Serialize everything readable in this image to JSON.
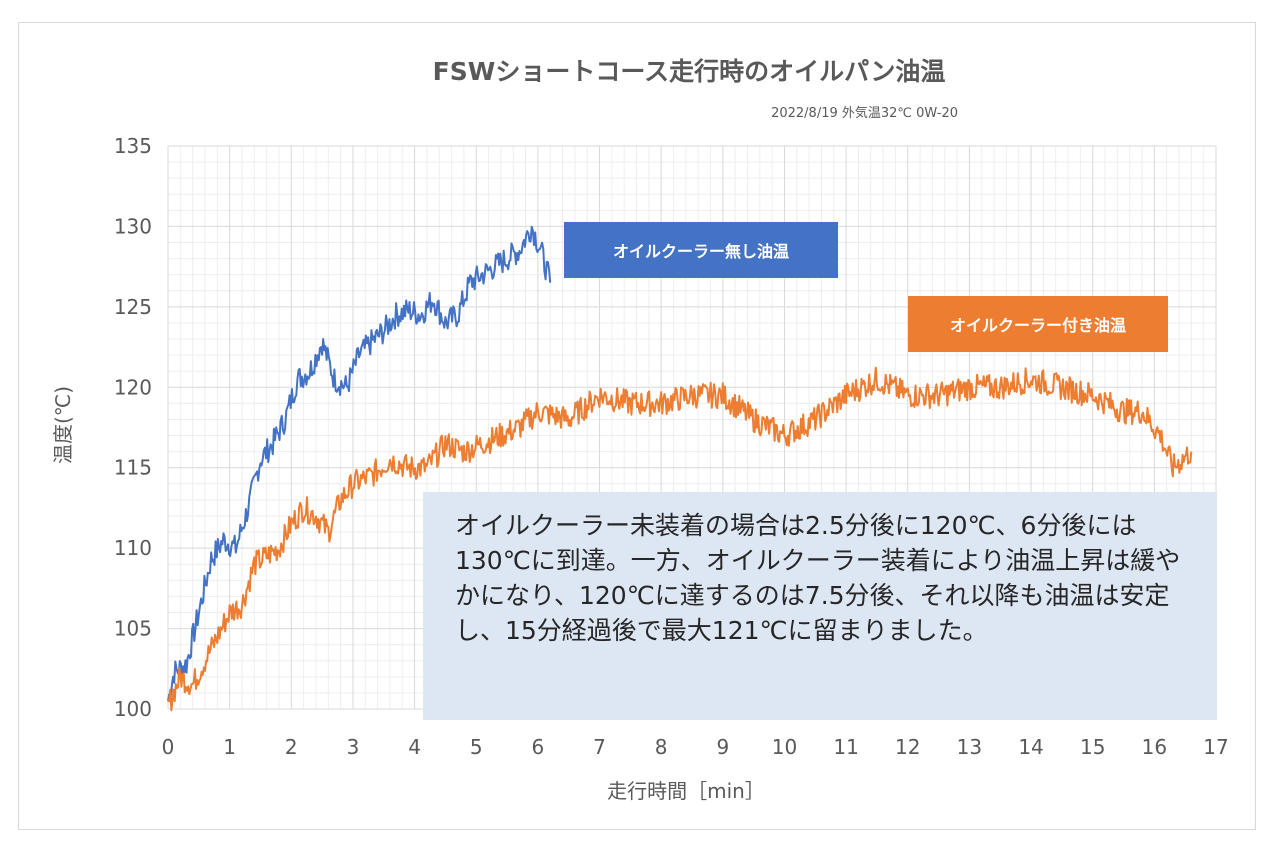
{
  "chart_data": {
    "type": "line",
    "title": "FSWショートコース走行時のオイルパン油温",
    "subtitle": "2022/8/19  外気温32℃  0W-20",
    "xlabel": "走行時間［min］",
    "ylabel": "温度(℃)",
    "xlim": [
      0,
      17
    ],
    "ylim": [
      100,
      135
    ],
    "x_ticks": [
      "0",
      "1",
      "2",
      "3",
      "4",
      "5",
      "6",
      "7",
      "8",
      "9",
      "10",
      "11",
      "12",
      "13",
      "14",
      "15",
      "16",
      "17"
    ],
    "y_ticks": [
      "100",
      "105",
      "110",
      "115",
      "120",
      "125",
      "130",
      "135"
    ],
    "grid": true,
    "series": [
      {
        "name": "オイルクーラー無し油温",
        "color": "#4472c4",
        "x": [
          0,
          0.1,
          0.3,
          0.5,
          0.7,
          0.9,
          1.1,
          1.3,
          1.5,
          1.7,
          1.9,
          2.1,
          2.3,
          2.5,
          2.7,
          2.9,
          3.1,
          3.3,
          3.5,
          3.7,
          3.9,
          4.1,
          4.3,
          4.5,
          4.7,
          4.9,
          5.1,
          5.3,
          5.5,
          5.7,
          5.9,
          6.05,
          6.2
        ],
        "y": [
          100.5,
          102.3,
          102.8,
          106.0,
          109.3,
          110.5,
          110.0,
          112.5,
          115.5,
          116.5,
          118.0,
          120.5,
          121.0,
          122.8,
          120.5,
          120.0,
          122.0,
          122.8,
          123.5,
          124.5,
          124.8,
          124.5,
          125.5,
          124.0,
          124.5,
          126.5,
          127.0,
          127.5,
          128.0,
          128.5,
          130.0,
          128.5,
          126.5
        ]
      },
      {
        "name": "オイルクーラー付き油温",
        "color": "#ed7d31",
        "x": [
          0,
          0.2,
          0.4,
          0.6,
          0.8,
          1.0,
          1.2,
          1.4,
          1.6,
          1.8,
          2.0,
          2.2,
          2.4,
          2.6,
          2.8,
          3.0,
          3.3,
          3.6,
          3.9,
          4.2,
          4.5,
          4.8,
          5.1,
          5.4,
          5.7,
          6.0,
          6.5,
          7.0,
          7.5,
          8.0,
          8.5,
          9.0,
          9.5,
          10.0,
          10.5,
          11.0,
          11.5,
          12.0,
          12.5,
          13.0,
          13.5,
          14.0,
          14.5,
          15.0,
          15.5,
          15.8,
          16.1,
          16.3,
          16.6
        ],
        "y": [
          100.2,
          102.0,
          101.5,
          103.0,
          104.5,
          106.0,
          106.5,
          109.0,
          109.5,
          110.0,
          111.5,
          112.5,
          112.0,
          111.0,
          113.0,
          114.0,
          114.5,
          115.5,
          115.0,
          115.0,
          116.5,
          116.0,
          116.5,
          117.0,
          117.5,
          118.5,
          118.0,
          119.5,
          119.0,
          119.0,
          119.5,
          119.5,
          118.0,
          117.0,
          118.0,
          119.5,
          120.5,
          119.5,
          119.5,
          120.0,
          120.0,
          120.5,
          120.0,
          119.5,
          118.5,
          118.5,
          117.0,
          115.0,
          116.0
        ]
      }
    ],
    "annotations": [
      {
        "label": "オイルクーラー無し油温",
        "bg": "#4472c4"
      },
      {
        "label": "オイルクーラー付き油温",
        "bg": "#ed7d31"
      }
    ]
  },
  "note_text": "オイルクーラー未装着の場合は2.5分後に120℃、6分後には130℃に到達。一方、オイルクーラー装着により油温上昇は緩やかになり、120℃に達するのは7.5分後、それ以降も油温は安定し、15分経過後で最大121℃に留まりました。"
}
